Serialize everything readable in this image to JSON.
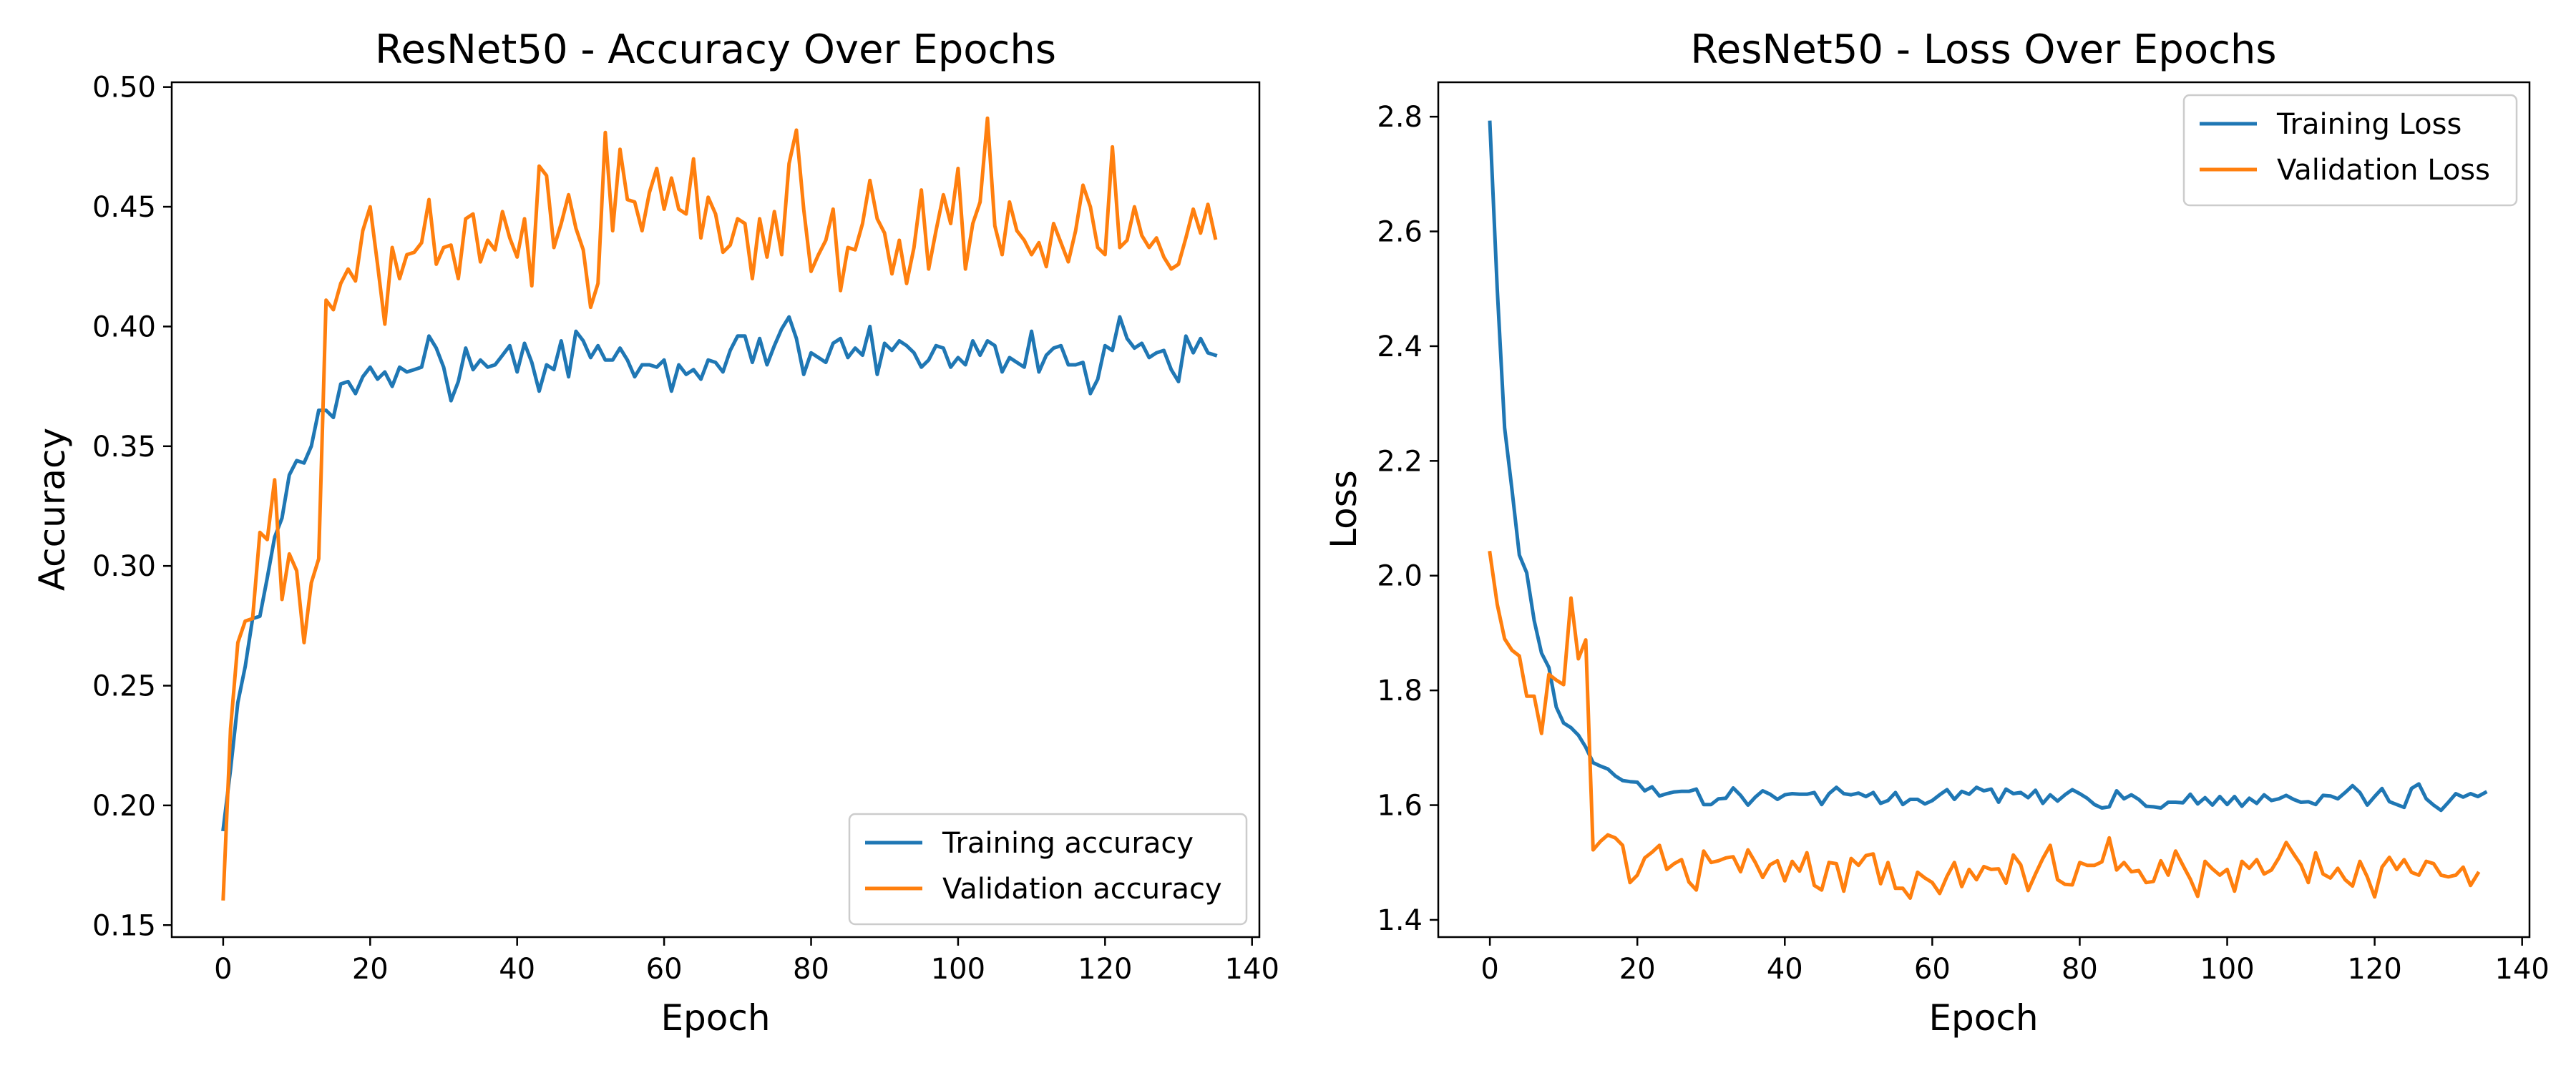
{
  "colors": {
    "training": "#1f77b4",
    "validation": "#ff7f0e"
  },
  "chart_data": [
    {
      "type": "line",
      "title": "ResNet50 - Accuracy Over Epochs",
      "xlabel": "Epoch",
      "ylabel": "Accuracy",
      "xlim": [
        -7,
        141
      ],
      "ylim": [
        0.145,
        0.502
      ],
      "xticks": [
        0,
        20,
        40,
        60,
        80,
        100,
        120,
        140
      ],
      "yticks": [
        0.15,
        0.2,
        0.25,
        0.3,
        0.35,
        0.4,
        0.45,
        0.5
      ],
      "ytick_decimals": 2,
      "grid": false,
      "legend_position": "lower-right",
      "series": [
        {
          "name": "Training accuracy",
          "color": "#1f77b4",
          "x_start": 0,
          "values": [
            0.19,
            0.215,
            0.243,
            0.258,
            0.278,
            0.279,
            0.295,
            0.312,
            0.32,
            0.338,
            0.344,
            0.343,
            0.35,
            0.365,
            0.365,
            0.362,
            0.376,
            0.377,
            0.372,
            0.379,
            0.383,
            0.378,
            0.381,
            0.375,
            0.383,
            0.381,
            0.382,
            0.383,
            0.396,
            0.391,
            0.383,
            0.369,
            0.377,
            0.391,
            0.382,
            0.386,
            0.383,
            0.384,
            0.388,
            0.392,
            0.381,
            0.393,
            0.385,
            0.373,
            0.384,
            0.382,
            0.394,
            0.379,
            0.398,
            0.394,
            0.387,
            0.392,
            0.386,
            0.386,
            0.391,
            0.386,
            0.379,
            0.384,
            0.384,
            0.383,
            0.386,
            0.373,
            0.384,
            0.38,
            0.382,
            0.378,
            0.386,
            0.385,
            0.381,
            0.39,
            0.396,
            0.396,
            0.385,
            0.395,
            0.384,
            0.392,
            0.399,
            0.404,
            0.395,
            0.38,
            0.389,
            0.387,
            0.385,
            0.393,
            0.395,
            0.387,
            0.391,
            0.388,
            0.4,
            0.38,
            0.393,
            0.39,
            0.394,
            0.392,
            0.389,
            0.383,
            0.386,
            0.392,
            0.391,
            0.383,
            0.387,
            0.384,
            0.394,
            0.388,
            0.394,
            0.392,
            0.381,
            0.387,
            0.385,
            0.383,
            0.398,
            0.381,
            0.388,
            0.391,
            0.392,
            0.384,
            0.384,
            0.385,
            0.372,
            0.378,
            0.392,
            0.39,
            0.404,
            0.395,
            0.391,
            0.393,
            0.387,
            0.389,
            0.39,
            0.382,
            0.377,
            0.396,
            0.389,
            0.395,
            0.389,
            0.388
          ]
        },
        {
          "name": "Validation accuracy",
          "color": "#ff7f0e",
          "x_start": 0,
          "values": [
            0.161,
            0.232,
            0.268,
            0.277,
            0.278,
            0.314,
            0.311,
            0.336,
            0.286,
            0.305,
            0.298,
            0.268,
            0.293,
            0.303,
            0.411,
            0.407,
            0.418,
            0.424,
            0.419,
            0.44,
            0.45,
            0.426,
            0.401,
            0.433,
            0.42,
            0.43,
            0.431,
            0.435,
            0.453,
            0.426,
            0.433,
            0.434,
            0.42,
            0.445,
            0.447,
            0.427,
            0.436,
            0.432,
            0.448,
            0.437,
            0.429,
            0.445,
            0.417,
            0.467,
            0.463,
            0.433,
            0.443,
            0.455,
            0.441,
            0.432,
            0.408,
            0.418,
            0.481,
            0.44,
            0.474,
            0.453,
            0.452,
            0.44,
            0.456,
            0.466,
            0.449,
            0.462,
            0.449,
            0.447,
            0.47,
            0.437,
            0.454,
            0.447,
            0.431,
            0.434,
            0.445,
            0.443,
            0.42,
            0.445,
            0.429,
            0.448,
            0.43,
            0.468,
            0.482,
            0.449,
            0.423,
            0.43,
            0.436,
            0.449,
            0.415,
            0.433,
            0.432,
            0.443,
            0.461,
            0.445,
            0.439,
            0.422,
            0.436,
            0.418,
            0.433,
            0.457,
            0.424,
            0.44,
            0.455,
            0.443,
            0.466,
            0.424,
            0.443,
            0.452,
            0.487,
            0.442,
            0.43,
            0.452,
            0.44,
            0.436,
            0.43,
            0.435,
            0.425,
            0.443,
            0.435,
            0.427,
            0.44,
            0.459,
            0.45,
            0.433,
            0.43,
            0.475,
            0.433,
            0.436,
            0.45,
            0.438,
            0.433,
            0.437,
            0.429,
            0.424,
            0.426,
            0.437,
            0.449,
            0.439,
            0.451,
            0.437
          ]
        }
      ]
    },
    {
      "type": "line",
      "title": "ResNet50 - Loss Over Epochs",
      "xlabel": "Epoch",
      "ylabel": "Loss",
      "xlim": [
        -7,
        141
      ],
      "ylim": [
        1.37,
        2.86
      ],
      "xticks": [
        0,
        20,
        40,
        60,
        80,
        100,
        120,
        140
      ],
      "yticks": [
        1.4,
        1.6,
        1.8,
        2.0,
        2.2,
        2.4,
        2.6,
        2.8
      ],
      "ytick_decimals": 1,
      "grid": false,
      "legend_position": "upper-right",
      "series": [
        {
          "name": "Training Loss",
          "color": "#1f77b4",
          "x_start": 0,
          "values": [
            2.79,
            2.5,
            2.258,
            2.15,
            2.036,
            2.005,
            1.922,
            1.865,
            1.84,
            1.771,
            1.743,
            1.735,
            1.722,
            1.701,
            1.674,
            1.668,
            1.663,
            1.651,
            1.643,
            1.641,
            1.64,
            1.625,
            1.632,
            1.616,
            1.62,
            1.623,
            1.624,
            1.624,
            1.628,
            1.601,
            1.601,
            1.611,
            1.612,
            1.63,
            1.617,
            1.6,
            1.614,
            1.625,
            1.619,
            1.61,
            1.618,
            1.62,
            1.619,
            1.619,
            1.622,
            1.601,
            1.62,
            1.631,
            1.62,
            1.618,
            1.621,
            1.615,
            1.622,
            1.603,
            1.608,
            1.622,
            1.601,
            1.61,
            1.61,
            1.602,
            1.608,
            1.618,
            1.627,
            1.61,
            1.624,
            1.619,
            1.631,
            1.625,
            1.628,
            1.605,
            1.628,
            1.62,
            1.622,
            1.613,
            1.626,
            1.603,
            1.618,
            1.607,
            1.618,
            1.627,
            1.62,
            1.612,
            1.601,
            1.595,
            1.597,
            1.625,
            1.611,
            1.618,
            1.61,
            1.598,
            1.597,
            1.595,
            1.605,
            1.605,
            1.604,
            1.619,
            1.602,
            1.613,
            1.6,
            1.615,
            1.601,
            1.615,
            1.598,
            1.612,
            1.603,
            1.618,
            1.608,
            1.611,
            1.617,
            1.61,
            1.605,
            1.606,
            1.601,
            1.617,
            1.616,
            1.611,
            1.622,
            1.634,
            1.622,
            1.6,
            1.615,
            1.629,
            1.606,
            1.601,
            1.596,
            1.629,
            1.637,
            1.611,
            1.6,
            1.591,
            1.605,
            1.62,
            1.614,
            1.62,
            1.615,
            1.622
          ]
        },
        {
          "name": "Validation Loss",
          "color": "#ff7f0e",
          "x_start": 0,
          "values": [
            2.04,
            1.95,
            1.89,
            1.87,
            1.86,
            1.79,
            1.79,
            1.725,
            1.828,
            1.818,
            1.81,
            1.961,
            1.855,
            1.888,
            1.522,
            1.537,
            1.548,
            1.543,
            1.53,
            1.465,
            1.478,
            1.508,
            1.518,
            1.53,
            1.488,
            1.498,
            1.505,
            1.466,
            1.452,
            1.52,
            1.5,
            1.503,
            1.508,
            1.51,
            1.484,
            1.522,
            1.5,
            1.474,
            1.496,
            1.503,
            1.468,
            1.502,
            1.485,
            1.517,
            1.46,
            1.452,
            1.5,
            1.498,
            1.45,
            1.507,
            1.495,
            1.512,
            1.515,
            1.463,
            1.5,
            1.455,
            1.455,
            1.438,
            1.483,
            1.473,
            1.465,
            1.446,
            1.476,
            1.5,
            1.458,
            1.488,
            1.47,
            1.493,
            1.488,
            1.489,
            1.464,
            1.513,
            1.496,
            1.451,
            1.48,
            1.507,
            1.53,
            1.47,
            1.462,
            1.461,
            1.5,
            1.495,
            1.495,
            1.501,
            1.543,
            1.487,
            1.5,
            1.484,
            1.486,
            1.465,
            1.467,
            1.503,
            1.478,
            1.52,
            1.495,
            1.471,
            1.441,
            1.502,
            1.489,
            1.478,
            1.488,
            1.45,
            1.502,
            1.49,
            1.505,
            1.48,
            1.487,
            1.508,
            1.535,
            1.515,
            1.496,
            1.465,
            1.517,
            1.48,
            1.473,
            1.49,
            1.47,
            1.459,
            1.502,
            1.475,
            1.44,
            1.492,
            1.509,
            1.488,
            1.505,
            1.483,
            1.478,
            1.502,
            1.498,
            1.478,
            1.475,
            1.478,
            1.492,
            1.46,
            1.481
          ]
        }
      ]
    }
  ]
}
